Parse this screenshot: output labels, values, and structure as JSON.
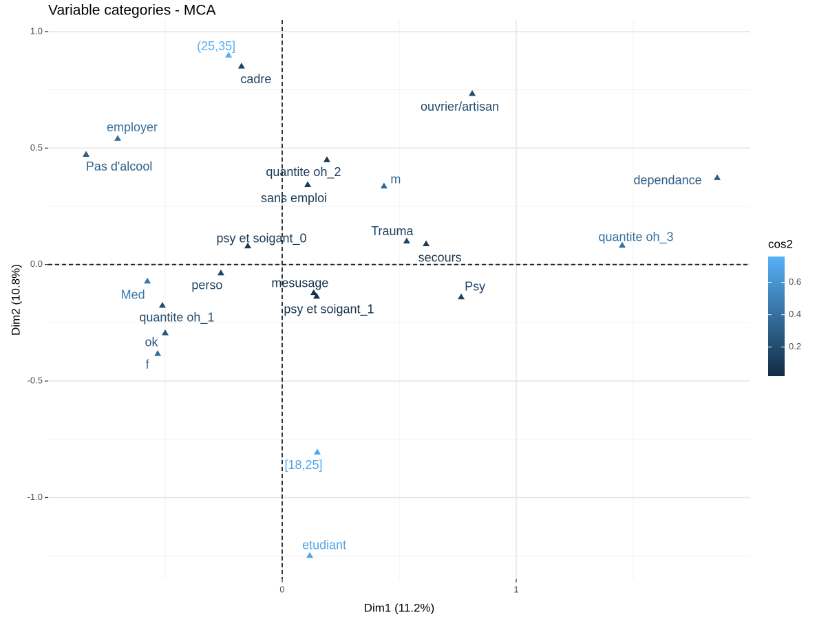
{
  "chart_data": {
    "type": "scatter",
    "title": "Variable categories - MCA",
    "xlabel": "Dim1 (11.2%)",
    "ylabel": "Dim2 (10.8%)",
    "labels": [
      "(25,35]",
      "cadre",
      "ouvrier/artisan",
      "employer",
      "Pas d'alcool",
      "quantite oh_2",
      "sans emploi",
      "m",
      "dependance",
      "psy et soigant_0",
      "Trauma",
      "secours",
      "quantite oh_3",
      "perso",
      "Med",
      "mesusage",
      "psy et soigant_1",
      "Psy",
      "quantite oh_1",
      "ok",
      "f",
      "[18,25]",
      "etudiant"
    ],
    "x": [
      -0.229,
      -0.174,
      0.812,
      -0.703,
      -0.838,
      0.191,
      0.109,
      0.435,
      1.859,
      -0.147,
      0.532,
      0.615,
      1.453,
      -0.262,
      -0.576,
      0.135,
      0.147,
      0.765,
      -0.512,
      -0.5,
      -0.532,
      0.15,
      0.118
    ],
    "values": [
      0.899,
      0.852,
      0.734,
      0.541,
      0.473,
      0.45,
      0.343,
      0.337,
      0.373,
      0.08,
      0.101,
      0.089,
      0.083,
      -0.036,
      -0.071,
      -0.121,
      -0.136,
      -0.139,
      -0.175,
      -0.293,
      -0.382,
      -0.805,
      -1.249
    ],
    "cos2": [
      0.75,
      0.15,
      0.2,
      0.4,
      0.3,
      0.1,
      0.1,
      0.35,
      0.3,
      0.1,
      0.15,
      0.1,
      0.4,
      0.15,
      0.45,
      0.05,
      0.05,
      0.15,
      0.2,
      0.25,
      0.4,
      0.7,
      0.7
    ],
    "xlim": [
      -1.0,
      2.0
    ],
    "ylim": [
      -1.35,
      1.05
    ],
    "xticks": [
      0,
      1
    ],
    "yticks": [
      {
        "value": 1.0,
        "label": "1.0"
      },
      0.5,
      {
        "value": 0.0,
        "label": "0.0"
      },
      -0.5,
      {
        "value": -1.0,
        "label": "-1.0"
      }
    ],
    "x_minor_grid": [
      -0.5,
      0.5,
      1.5
    ],
    "y_minor_grid": [
      0.75,
      0.25,
      -0.25,
      -0.75,
      -1.25
    ],
    "grid": true,
    "hline": 0,
    "vline": 0,
    "legend_title": "cos2",
    "colorlim": [
      0.02,
      0.76
    ],
    "colorticks": [
      0.2,
      0.4,
      0.6
    ],
    "color_low": "#132B43",
    "color_high": "#56B1F7"
  }
}
